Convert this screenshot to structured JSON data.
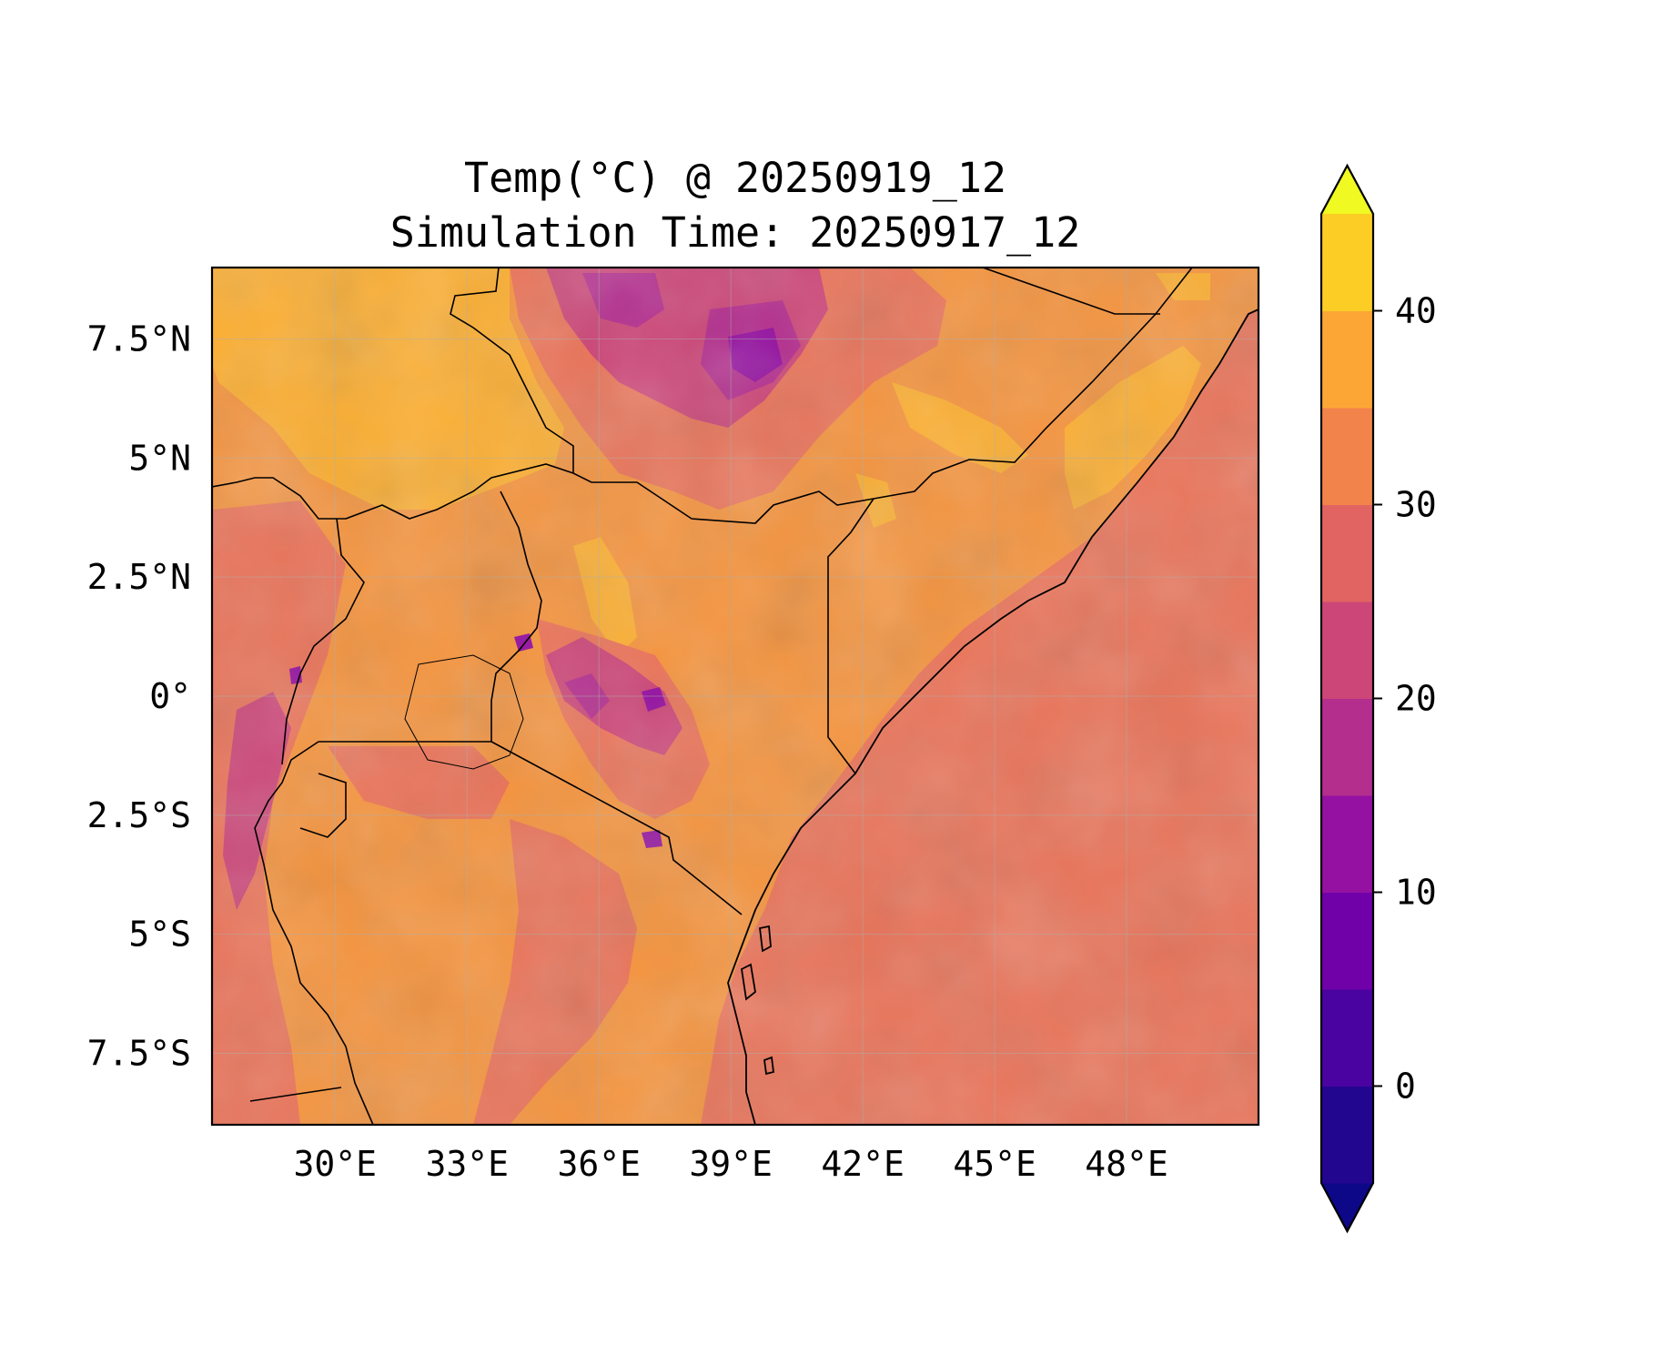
{
  "title": {
    "line1": "Temp(°C) @ 20250919_12",
    "line2": "Simulation Time: 20250917_12"
  },
  "map": {
    "lon_range": [
      27.2,
      51.0
    ],
    "lat_range": [
      -9.0,
      9.0
    ],
    "x_ticks": [
      {
        "value": 30,
        "label": "30°E"
      },
      {
        "value": 33,
        "label": "33°E"
      },
      {
        "value": 36,
        "label": "36°E"
      },
      {
        "value": 39,
        "label": "39°E"
      },
      {
        "value": 42,
        "label": "42°E"
      },
      {
        "value": 45,
        "label": "45°E"
      },
      {
        "value": 48,
        "label": "48°E"
      }
    ],
    "y_ticks": [
      {
        "value": 7.5,
        "label": "7.5°N"
      },
      {
        "value": 5,
        "label": "5°N"
      },
      {
        "value": 2.5,
        "label": "2.5°N"
      },
      {
        "value": 0,
        "label": "0°"
      },
      {
        "value": -2.5,
        "label": "2.5°S"
      },
      {
        "value": -5,
        "label": "5°S"
      },
      {
        "value": -7.5,
        "label": "7.5°S"
      }
    ],
    "gridlines": true
  },
  "colorbar": {
    "levels": [
      -5,
      0,
      5,
      10,
      15,
      20,
      25,
      30,
      35,
      40,
      45
    ],
    "colors": [
      "#230690",
      "#4a03a0",
      "#7001a8",
      "#9511a1",
      "#b42e8e",
      "#cc4778",
      "#e16462",
      "#f2844b",
      "#fca636",
      "#fcce25"
    ],
    "under_color": "#0d0887",
    "over_color": "#f0f921",
    "ticks": [
      {
        "value": 0,
        "label": "0"
      },
      {
        "value": 10,
        "label": "10"
      },
      {
        "value": 20,
        "label": "20"
      },
      {
        "value": 30,
        "label": "30"
      },
      {
        "value": 40,
        "label": "40"
      }
    ]
  },
  "legend_icons": {
    "coastline": "coastline-icon",
    "borders": "border-icon"
  }
}
